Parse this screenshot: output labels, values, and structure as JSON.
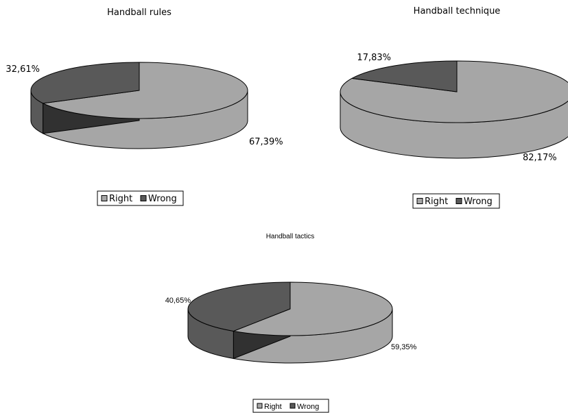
{
  "chart_data": [
    {
      "type": "pie",
      "title": "Handball rules",
      "categories": [
        "Right",
        "Wrong"
      ],
      "values": [
        67.39,
        32.61
      ],
      "value_labels": [
        "67,39%",
        "32,61%"
      ],
      "legend": {
        "placement": "bottom",
        "entries": [
          "Right",
          "Wrong"
        ]
      },
      "colors": {
        "Right": "#a6a6a6",
        "Wrong": "#595959"
      },
      "style": "3d"
    },
    {
      "type": "pie",
      "title": "Handball technique",
      "categories": [
        "Right",
        "Wrong"
      ],
      "values": [
        82.17,
        17.83
      ],
      "value_labels": [
        "82,17%",
        "17,83%"
      ],
      "legend": {
        "placement": "bottom",
        "entries": [
          "Right",
          "Wrong"
        ]
      },
      "colors": {
        "Right": "#a6a6a6",
        "Wrong": "#595959"
      },
      "style": "3d"
    },
    {
      "type": "pie",
      "title": "Handball tactics",
      "categories": [
        "Right",
        "Wrong"
      ],
      "values": [
        59.35,
        40.65
      ],
      "value_labels": [
        "59,35%",
        "40,65%"
      ],
      "legend": {
        "placement": "bottom",
        "entries": [
          "Right",
          "Wrong"
        ]
      },
      "colors": {
        "Right": "#a6a6a6",
        "Wrong": "#595959"
      },
      "style": "3d"
    }
  ]
}
